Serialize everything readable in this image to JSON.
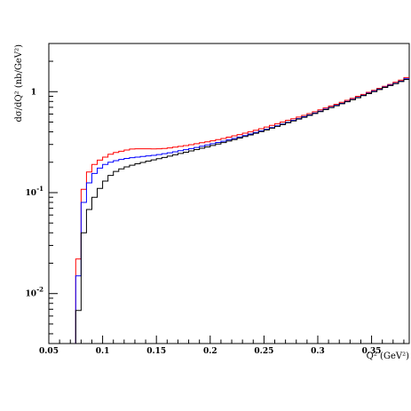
{
  "chart_data": {
    "type": "line",
    "step": true,
    "title": "",
    "xlabel": "Q² (GeV²)",
    "ylabel": "dσ/dQ² (nb/GeV²)",
    "xlim": [
      0.05,
      0.385
    ],
    "ylim": [
      0.0032,
      3.0
    ],
    "yscale": "log",
    "grid": false,
    "legend": "none",
    "x_ticks": [
      {
        "value": 0.05,
        "label": "0.05"
      },
      {
        "value": 0.1,
        "label": "0.1"
      },
      {
        "value": 0.15,
        "label": "0.15"
      },
      {
        "value": 0.2,
        "label": "0.2"
      },
      {
        "value": 0.25,
        "label": "0.25"
      },
      {
        "value": 0.3,
        "label": "0.3"
      },
      {
        "value": 0.35,
        "label": "0.35"
      }
    ],
    "y_ticks": [
      {
        "value": 1,
        "base": "1",
        "exp": ""
      },
      {
        "value": 0.1,
        "base": "10",
        "exp": "-1"
      },
      {
        "value": 0.01,
        "base": "10",
        "exp": "-2"
      }
    ],
    "series": [
      {
        "color": "#ff0000",
        "x": [
          0.075,
          0.08,
          0.085,
          0.09,
          0.095,
          0.1,
          0.105,
          0.11,
          0.115,
          0.12,
          0.125,
          0.13,
          0.135,
          0.14,
          0.145,
          0.15,
          0.155,
          0.16,
          0.165,
          0.17,
          0.175,
          0.18,
          0.185,
          0.19,
          0.195,
          0.2,
          0.205,
          0.21,
          0.215,
          0.22,
          0.225,
          0.23,
          0.235,
          0.24,
          0.245,
          0.25,
          0.255,
          0.26,
          0.265,
          0.27,
          0.275,
          0.28,
          0.285,
          0.29,
          0.295,
          0.3,
          0.305,
          0.31,
          0.315,
          0.32,
          0.325,
          0.33,
          0.335,
          0.34,
          0.345,
          0.35,
          0.355,
          0.36,
          0.365,
          0.37,
          0.375,
          0.38
        ],
        "y": [
          0.022,
          0.108,
          0.16,
          0.19,
          0.21,
          0.225,
          0.24,
          0.25,
          0.257,
          0.264,
          0.27,
          0.272,
          0.272,
          0.272,
          0.271,
          0.272,
          0.274,
          0.277,
          0.282,
          0.287,
          0.292,
          0.298,
          0.305,
          0.312,
          0.319,
          0.326,
          0.335,
          0.344,
          0.354,
          0.365,
          0.376,
          0.388,
          0.401,
          0.415,
          0.43,
          0.446,
          0.463,
          0.481,
          0.5,
          0.52,
          0.54,
          0.56,
          0.582,
          0.606,
          0.632,
          0.66,
          0.69,
          0.72,
          0.75,
          0.785,
          0.82,
          0.86,
          0.9,
          0.94,
          0.985,
          1.03,
          1.08,
          1.13,
          1.18,
          1.24,
          1.3,
          1.38
        ]
      },
      {
        "color": "#0000ff",
        "x": [
          0.075,
          0.08,
          0.085,
          0.09,
          0.095,
          0.1,
          0.105,
          0.11,
          0.115,
          0.12,
          0.125,
          0.13,
          0.135,
          0.14,
          0.145,
          0.15,
          0.155,
          0.16,
          0.165,
          0.17,
          0.175,
          0.18,
          0.185,
          0.19,
          0.195,
          0.2,
          0.205,
          0.21,
          0.215,
          0.22,
          0.225,
          0.23,
          0.235,
          0.24,
          0.245,
          0.25,
          0.255,
          0.26,
          0.265,
          0.27,
          0.275,
          0.28,
          0.285,
          0.29,
          0.295,
          0.3,
          0.305,
          0.31,
          0.315,
          0.32,
          0.325,
          0.33,
          0.335,
          0.34,
          0.345,
          0.35,
          0.355,
          0.36,
          0.365,
          0.37,
          0.375,
          0.38
        ],
        "y": [
          0.015,
          0.08,
          0.125,
          0.155,
          0.175,
          0.19,
          0.2,
          0.207,
          0.213,
          0.218,
          0.222,
          0.225,
          0.228,
          0.231,
          0.234,
          0.238,
          0.243,
          0.248,
          0.254,
          0.26,
          0.266,
          0.273,
          0.28,
          0.288,
          0.296,
          0.305,
          0.314,
          0.323,
          0.333,
          0.344,
          0.355,
          0.367,
          0.38,
          0.394,
          0.408,
          0.424,
          0.441,
          0.459,
          0.478,
          0.498,
          0.519,
          0.541,
          0.564,
          0.588,
          0.614,
          0.641,
          0.67,
          0.7,
          0.732,
          0.765,
          0.8,
          0.838,
          0.878,
          0.92,
          0.965,
          1.01,
          1.06,
          1.11,
          1.16,
          1.21,
          1.27,
          1.34
        ]
      },
      {
        "color": "#000000",
        "x": [
          0.075,
          0.08,
          0.085,
          0.09,
          0.095,
          0.1,
          0.105,
          0.11,
          0.115,
          0.12,
          0.125,
          0.13,
          0.135,
          0.14,
          0.145,
          0.15,
          0.155,
          0.16,
          0.165,
          0.17,
          0.175,
          0.18,
          0.185,
          0.19,
          0.195,
          0.2,
          0.205,
          0.21,
          0.215,
          0.22,
          0.225,
          0.23,
          0.235,
          0.24,
          0.245,
          0.25,
          0.255,
          0.26,
          0.265,
          0.27,
          0.275,
          0.28,
          0.285,
          0.29,
          0.295,
          0.3,
          0.305,
          0.31,
          0.315,
          0.32,
          0.325,
          0.33,
          0.335,
          0.34,
          0.345,
          0.35,
          0.355,
          0.36,
          0.365,
          0.37,
          0.375,
          0.38
        ],
        "y": [
          0.0068,
          0.04,
          0.068,
          0.09,
          0.11,
          0.13,
          0.148,
          0.162,
          0.172,
          0.18,
          0.187,
          0.193,
          0.199,
          0.205,
          0.211,
          0.217,
          0.223,
          0.23,
          0.237,
          0.244,
          0.251,
          0.259,
          0.267,
          0.275,
          0.284,
          0.293,
          0.303,
          0.313,
          0.324,
          0.335,
          0.347,
          0.36,
          0.373,
          0.387,
          0.402,
          0.418,
          0.435,
          0.453,
          0.472,
          0.492,
          0.513,
          0.535,
          0.558,
          0.582,
          0.608,
          0.635,
          0.664,
          0.694,
          0.726,
          0.76,
          0.795,
          0.832,
          0.871,
          0.912,
          0.955,
          1.0,
          1.05,
          1.1,
          1.15,
          1.2,
          1.26,
          1.32
        ]
      }
    ]
  }
}
